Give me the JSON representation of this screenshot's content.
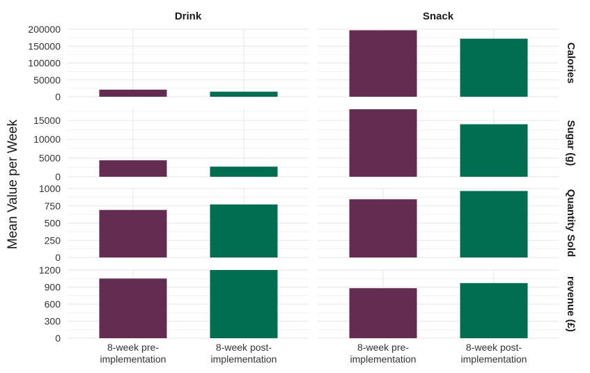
{
  "chart_data": {
    "type": "bar",
    "ylabel": "Mean Value per Week",
    "xlabel": "",
    "columns": [
      "Drink",
      "Snack"
    ],
    "categories": [
      [
        "8-week pre-",
        "implementation"
      ],
      [
        "8-week post-",
        "implementation"
      ]
    ],
    "colors": {
      "pre": "#652C52",
      "post": "#006F51"
    },
    "grid": true,
    "legend": "none",
    "facets": [
      {
        "row": "Calories",
        "ylim": [
          0,
          200000
        ],
        "ticks": [
          "0",
          "50000",
          "100000",
          "150000",
          "200000"
        ],
        "values": {
          "Drink": [
            21000,
            15000
          ],
          "Snack": [
            197000,
            172000
          ]
        }
      },
      {
        "row": "Sugar (g)",
        "ylim": [
          0,
          18000
        ],
        "ticks": [
          "0",
          "5000",
          "10000",
          "15000"
        ],
        "values": {
          "Drink": [
            4400,
            2700
          ],
          "Snack": [
            18000,
            14000
          ]
        }
      },
      {
        "row": "Quantity Sold",
        "ylim": [
          0,
          1000
        ],
        "ticks": [
          "0",
          "250",
          "500",
          "750",
          "1000"
        ],
        "values": {
          "Drink": [
            690,
            770
          ],
          "Snack": [
            845,
            965
          ]
        }
      },
      {
        "row": "revenue (£)",
        "ylim": [
          0,
          1200
        ],
        "ticks": [
          "0",
          "300",
          "600",
          "900",
          "1200"
        ],
        "values": {
          "Drink": [
            1050,
            1200
          ],
          "Snack": [
            880,
            970
          ]
        }
      }
    ]
  }
}
